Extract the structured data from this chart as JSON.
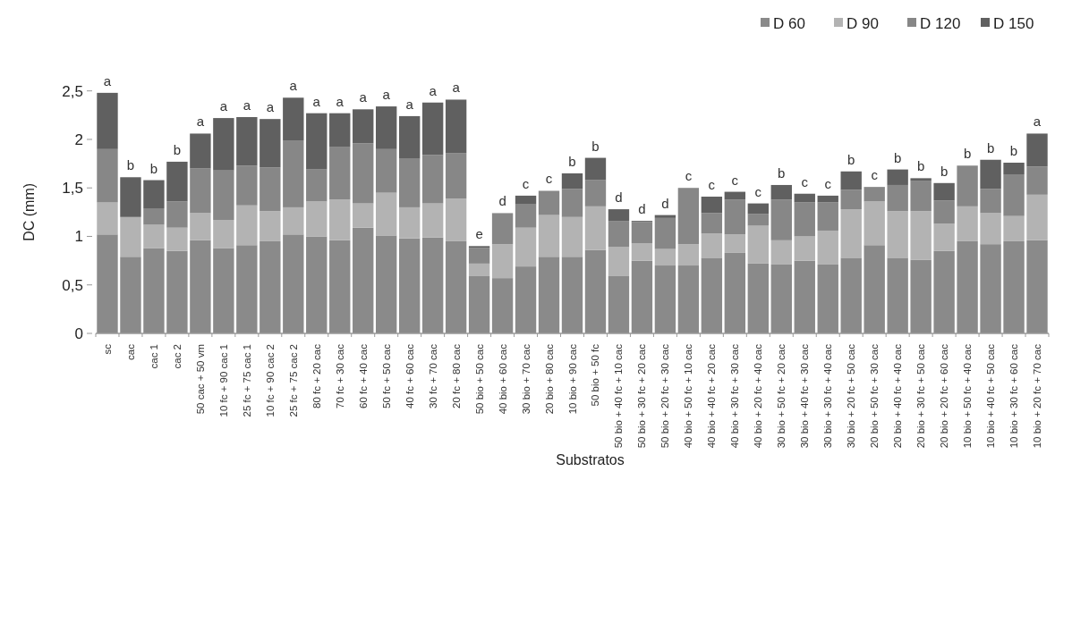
{
  "chart_data": {
    "type": "bar",
    "stacked": true,
    "xlabel": "Substratos",
    "ylabel": "DC (mm)",
    "legend": "top right",
    "grid": false,
    "categories": [
      "sc",
      "cac",
      "cac 1",
      "cac 2",
      "50 cac + 50 vm",
      "10 fc + 90 cac 1",
      "25 fc + 75 cac 1",
      "10 fc + 90 cac 2",
      "25 fc + 75 cac 2",
      "80 fc + 20 cac",
      "70 fc + 30 cac",
      "60 fc + 40 cac",
      "50 fc + 50 cac",
      "40 fc + 60 cac",
      "30 fc + 70 cac",
      "20 fc + 80 cac",
      "50 bio + 50 cac",
      "40 bio + 60 cac",
      "30 bio + 70 cac",
      "20 bio + 80 cac",
      "10 bio + 90 cac",
      "50 bio + 50 fc",
      "50 bio + 40 fc + 10 cac",
      "50 bio + 30 fc + 20 cac",
      "50 bio + 20 fc + 30 cac",
      "40 bio + 50 fc + 10 cac",
      "40 bio + 40 fc + 20 cac",
      "40 bio + 30 fc + 30 cac",
      "40 bio + 20 fc + 40 cac",
      "30 bio + 50 fc + 20 cac",
      "30 bio + 40 fc + 30 cac",
      "30 bio + 30 fc + 40 cac",
      "30 bio + 20 fc + 50 cac",
      "20 bio + 50 fc + 30 cac",
      "20 bio + 40 fc + 40 cac",
      "20 bio + 30 fc + 50 cac",
      "20 bio + 20 fc + 60 cac",
      "10 bio + 50 fc + 40 cac",
      "10 bio + 40 fc + 50 cac",
      "10 bio + 30 fc + 60 cac",
      "10 bio + 20 fc + 70 cac"
    ],
    "series": [
      {
        "name": "D 60",
        "color": "#8a8a8a",
        "values": [
          1.02,
          0.79,
          0.88,
          0.85,
          0.96,
          0.88,
          0.91,
          0.95,
          1.02,
          1.0,
          0.96,
          1.09,
          1.01,
          0.98,
          0.99,
          0.95,
          0.59,
          0.57,
          0.69,
          0.79,
          0.79,
          0.86,
          0.59,
          0.75,
          0.7,
          0.7,
          0.78,
          0.83,
          0.72,
          0.71,
          0.75,
          0.71,
          0.78,
          0.91,
          0.78,
          0.76,
          0.85,
          0.95,
          0.92,
          0.95,
          0.96
        ]
      },
      {
        "name": "D 90",
        "color": "#b3b3b3",
        "values": [
          0.33,
          0.41,
          0.24,
          0.24,
          0.28,
          0.29,
          0.41,
          0.31,
          0.28,
          0.36,
          0.42,
          0.25,
          0.44,
          0.32,
          0.35,
          0.44,
          0.13,
          0.35,
          0.4,
          0.43,
          0.41,
          0.45,
          0.3,
          0.18,
          0.17,
          0.22,
          0.25,
          0.19,
          0.39,
          0.25,
          0.25,
          0.35,
          0.5,
          0.45,
          0.48,
          0.5,
          0.28,
          0.36,
          0.32,
          0.26,
          0.47
        ]
      },
      {
        "name": "D 120",
        "color": "#878787",
        "values": [
          0.55,
          0,
          0.17,
          0.27,
          0.46,
          0.51,
          0.41,
          0.45,
          0.69,
          0.33,
          0.54,
          0.62,
          0.45,
          0.5,
          0.5,
          0.47,
          0.16,
          0.32,
          0.24,
          0.25,
          0.29,
          0.27,
          0.27,
          0.22,
          0.32,
          0.58,
          0.21,
          0.36,
          0.12,
          0.42,
          0.35,
          0.29,
          0.2,
          0.15,
          0.27,
          0.31,
          0.24,
          0.42,
          0.25,
          0.43,
          0.29
        ]
      },
      {
        "name": "D 150",
        "color": "#606060",
        "values": [
          0.58,
          0.41,
          0.29,
          0.41,
          0.36,
          0.54,
          0.5,
          0.5,
          0.44,
          0.58,
          0.35,
          0.35,
          0.44,
          0.44,
          0.54,
          0.55,
          0.02,
          0,
          0.09,
          0,
          0.16,
          0.23,
          0.12,
          0.01,
          0.03,
          0,
          0.17,
          0.08,
          0.11,
          0.15,
          0.09,
          0.07,
          0.19,
          0,
          0.16,
          0.03,
          0.18,
          0,
          0.3,
          0.12,
          0.34
        ]
      }
    ],
    "ylim": [
      0,
      2.5
    ],
    "yticks": [
      0,
      {
        "value": 0.5,
        "label": "0,5"
      },
      1,
      {
        "value": 1.5,
        "label": "1,5"
      },
      2,
      {
        "value": 2.5,
        "label": "2,5"
      }
    ],
    "annotations": [
      {
        "text": "a",
        "x": "sc",
        "y": 2.48
      },
      {
        "text": "b",
        "x": "cac",
        "y": 1.61
      },
      {
        "text": "b",
        "x": "cac 1",
        "y": 1.58
      },
      {
        "text": "b",
        "x": "cac 2",
        "y": 1.77
      },
      {
        "text": "a",
        "x": "50 cac + 50 vm",
        "y": 2.06
      },
      {
        "text": "a",
        "x": "10 fc + 90 cac 1",
        "y": 2.22
      },
      {
        "text": "a",
        "x": "25 fc + 75 cac 1",
        "y": 2.23
      },
      {
        "text": "a",
        "x": "10 fc + 90 cac 2",
        "y": 2.21
      },
      {
        "text": "a",
        "x": "25 fc + 75 cac 2",
        "y": 2.43
      },
      {
        "text": "a",
        "x": "80 fc + 20 cac",
        "y": 2.27
      },
      {
        "text": "a",
        "x": "70 fc + 30 cac",
        "y": 2.27
      },
      {
        "text": "a",
        "x": "60 fc + 40 cac",
        "y": 2.31
      },
      {
        "text": "a",
        "x": "50 fc + 50 cac",
        "y": 2.34
      },
      {
        "text": "a",
        "x": "40 fc + 60 cac",
        "y": 2.24
      },
      {
        "text": "a",
        "x": "30 fc + 70 cac",
        "y": 2.38
      },
      {
        "text": "a",
        "x": "20 fc + 80 cac",
        "y": 2.41
      },
      {
        "text": "e",
        "x": "50 bio + 50 cac",
        "y": 0.9
      },
      {
        "text": "d",
        "x": "40 bio + 60 cac",
        "y": 1.24
      },
      {
        "text": "c",
        "x": "30 bio + 70 cac",
        "y": 1.42
      },
      {
        "text": "c",
        "x": "20 bio + 80 cac",
        "y": 1.47
      },
      {
        "text": "b",
        "x": "10 bio + 90 cac",
        "y": 1.65
      },
      {
        "text": "b",
        "x": "50 bio + 50 fc",
        "y": 1.81
      },
      {
        "text": "d",
        "x": "50 bio + 40 fc + 10 cac",
        "y": 1.28
      },
      {
        "text": "d",
        "x": "50 bio + 30 fc + 20 cac",
        "y": 1.16
      },
      {
        "text": "d",
        "x": "50 bio + 20 fc + 30 cac",
        "y": 1.22
      },
      {
        "text": "c",
        "x": "40 bio + 50 fc + 10 cac",
        "y": 1.5
      },
      {
        "text": "c",
        "x": "40 bio + 40 fc + 20 cac",
        "y": 1.41
      },
      {
        "text": "c",
        "x": "40 bio + 30 fc + 30 cac",
        "y": 1.46
      },
      {
        "text": "c",
        "x": "40 bio + 20 fc + 40 cac",
        "y": 1.34
      },
      {
        "text": "b",
        "x": "30 bio + 50 fc + 20 cac",
        "y": 1.53
      },
      {
        "text": "c",
        "x": "30 bio + 40 fc + 30 cac",
        "y": 1.44
      },
      {
        "text": "c",
        "x": "30 bio + 30 fc + 40 cac",
        "y": 1.42
      },
      {
        "text": "b",
        "x": "30 bio + 20 fc + 50 cac",
        "y": 1.67
      },
      {
        "text": "c",
        "x": "20 bio + 50 fc + 30 cac",
        "y": 1.51
      },
      {
        "text": "b",
        "x": "20 bio + 40 fc + 40 cac",
        "y": 1.69
      },
      {
        "text": "b",
        "x": "20 bio + 30 fc + 50 cac",
        "y": 1.6
      },
      {
        "text": "b",
        "x": "20 bio + 20 fc + 60 cac",
        "y": 1.55
      },
      {
        "text": "b",
        "x": "10 bio + 50 fc + 40 cac",
        "y": 1.73
      },
      {
        "text": "b",
        "x": "10 bio + 40 fc + 50 cac",
        "y": 1.79
      },
      {
        "text": "b",
        "x": "10 bio + 30 fc + 60 cac",
        "y": 1.76
      },
      {
        "text": "a",
        "x": "10 bio + 20 fc + 70 cac",
        "y": 2.06
      }
    ]
  }
}
